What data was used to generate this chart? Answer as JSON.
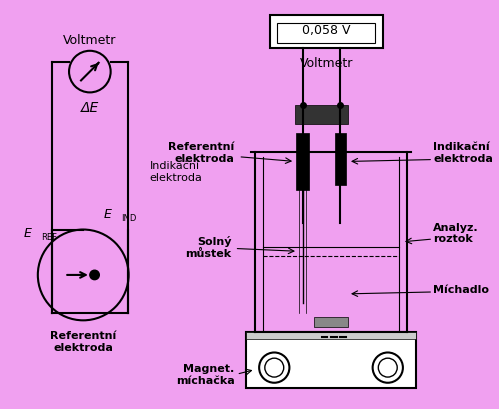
{
  "bg_color": "#f0a0f0",
  "line_color": "#000000",
  "text_color": "#000000",
  "bold_label_color": "#000000",
  "fig_width": 4.99,
  "fig_height": 4.1,
  "dpi": 100,
  "voltmeter_display": "0,058 V",
  "labels": {
    "voltmetr_left": "Voltmetr",
    "delta_e": "ΔE",
    "e_ind": "E",
    "e_ind_sub": "IND",
    "indikacni_left": "Indikační\nelektroda",
    "e_ref": "E",
    "e_ref_sub": "REF",
    "referentni_left": "Referentní\nelektroda",
    "voltmetr_right": "Voltmetr",
    "referentni_right": "Referentní\nelektroda",
    "indikacni_right": "Indikační\nelektroda",
    "solny_mustek": "Solný\nmůstek",
    "analyz_roztok": "Analyz.\nroztok",
    "michadlo": "Míchadlo",
    "magnet_michacka": "Magnet.\nmíchačka"
  }
}
